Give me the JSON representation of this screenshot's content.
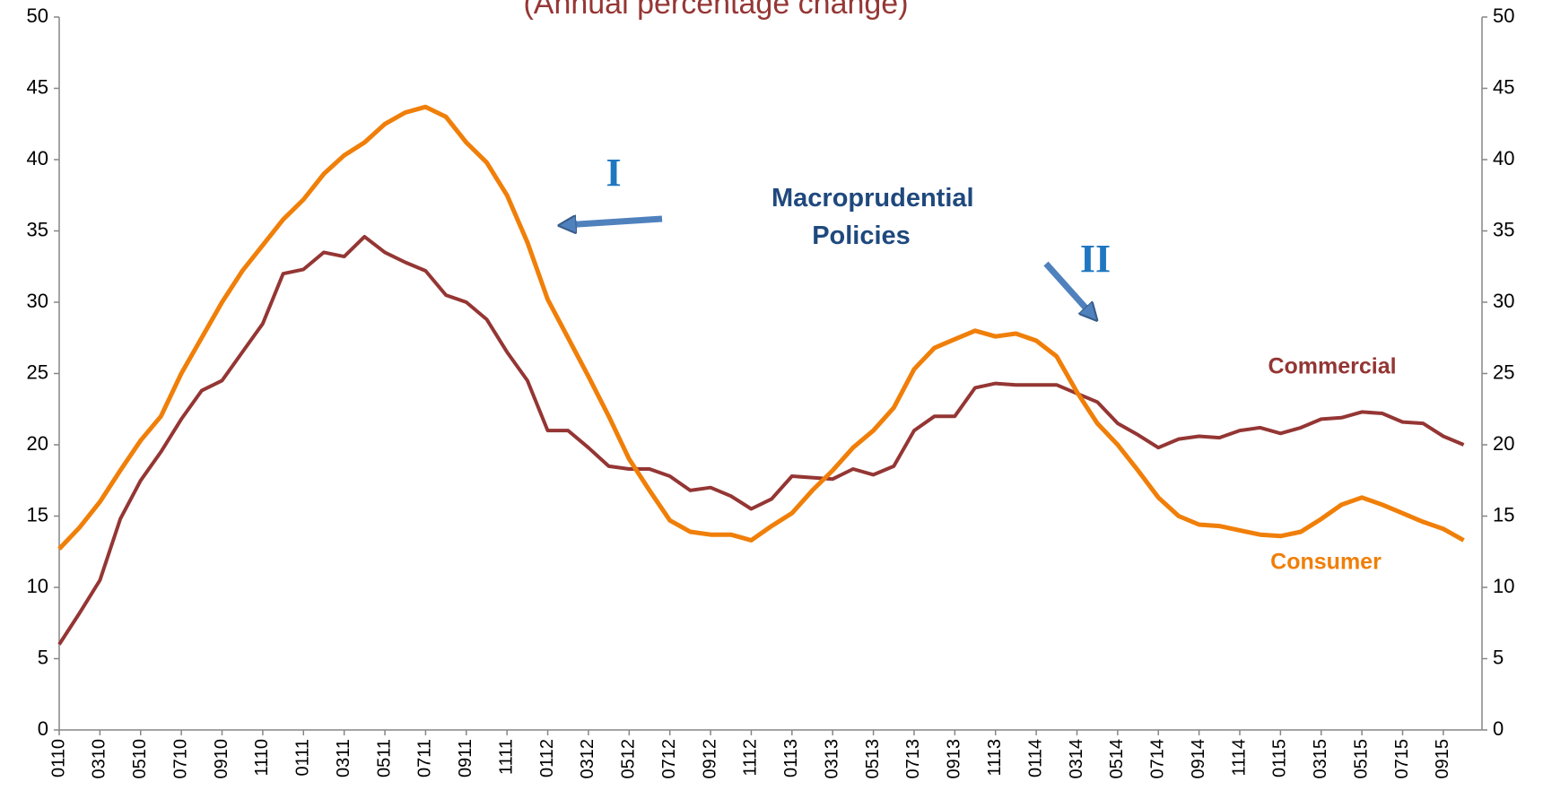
{
  "chart_data": {
    "type": "line",
    "title": "(Annual percentage change)",
    "categories": [
      "0110",
      null,
      "0310",
      null,
      "0510",
      null,
      "0710",
      null,
      "0910",
      null,
      "1110",
      null,
      "0111",
      null,
      "0311",
      null,
      "0511",
      null,
      "0711",
      null,
      "0911",
      null,
      "1111",
      null,
      "0112",
      null,
      "0312",
      null,
      "0512",
      null,
      "0712",
      null,
      "0912",
      null,
      "1112",
      null,
      "0113",
      null,
      "0313",
      null,
      "0513",
      null,
      "0713",
      null,
      "0913",
      null,
      "1113",
      null,
      "0114",
      null,
      "0314",
      null,
      "0514",
      null,
      "0714",
      null,
      "0914",
      null,
      "1114",
      null,
      "0115",
      null,
      "0315",
      null,
      "0515",
      null,
      "0715",
      null,
      "0915",
      null
    ],
    "series": [
      {
        "name": "Commercial",
        "color": "#943634",
        "values": [
          6,
          8.2,
          10.5,
          14.8,
          17.5,
          19.5,
          21.8,
          23.8,
          24.5,
          26.5,
          28.5,
          32,
          32.3,
          33.5,
          33.2,
          34.6,
          33.5,
          32.8,
          32.2,
          30.5,
          30,
          28.8,
          26.5,
          24.5,
          21,
          21,
          19.8,
          18.5,
          18.3,
          18.3,
          17.8,
          16.8,
          17,
          16.4,
          15.5,
          16.2,
          17.8,
          17.7,
          17.6,
          18.3,
          17.9,
          18.5,
          21,
          22,
          22,
          24,
          24.3,
          24.2,
          24.2,
          24.2,
          23.6,
          23,
          21.5,
          20.7,
          19.8,
          20.4,
          20.6,
          20.5,
          21,
          21.2,
          20.8,
          21.2,
          21.8,
          21.9,
          22.3,
          22.2,
          21.6,
          21.5,
          20.6,
          20
        ]
      },
      {
        "name": "Consumer",
        "color": "#f07f09",
        "values": [
          12.7,
          14.2,
          16,
          18.2,
          20.3,
          22,
          25,
          27.5,
          30,
          32.2,
          34,
          35.8,
          37.2,
          39,
          40.3,
          41.2,
          42.5,
          43.3,
          43.7,
          43,
          41.2,
          39.8,
          37.5,
          34.2,
          30.2,
          27.5,
          24.8,
          22,
          19,
          16.8,
          14.7,
          13.9,
          13.7,
          13.7,
          13.3,
          14.3,
          15.2,
          16.8,
          18.2,
          19.8,
          21,
          22.6,
          25.3,
          26.8,
          27.4,
          28,
          27.6,
          27.8,
          27.3,
          26.2,
          23.7,
          21.5,
          20,
          18.2,
          16.3,
          15,
          14.4,
          14.3,
          14,
          13.7,
          13.6,
          13.9,
          14.8,
          15.8,
          16.3,
          15.8,
          15.2,
          14.6,
          14.1,
          13.3
        ]
      }
    ],
    "ylim": [
      0,
      50
    ],
    "yticks": [
      0,
      5,
      10,
      15,
      20,
      25,
      30,
      35,
      40,
      45,
      50
    ],
    "y2lim": [
      0,
      50
    ],
    "y2ticks": [
      0,
      5,
      10,
      15,
      20,
      25,
      30,
      35,
      40,
      45,
      50
    ],
    "annotations": [
      "I",
      "II",
      "Macroprudential Policies"
    ]
  }
}
